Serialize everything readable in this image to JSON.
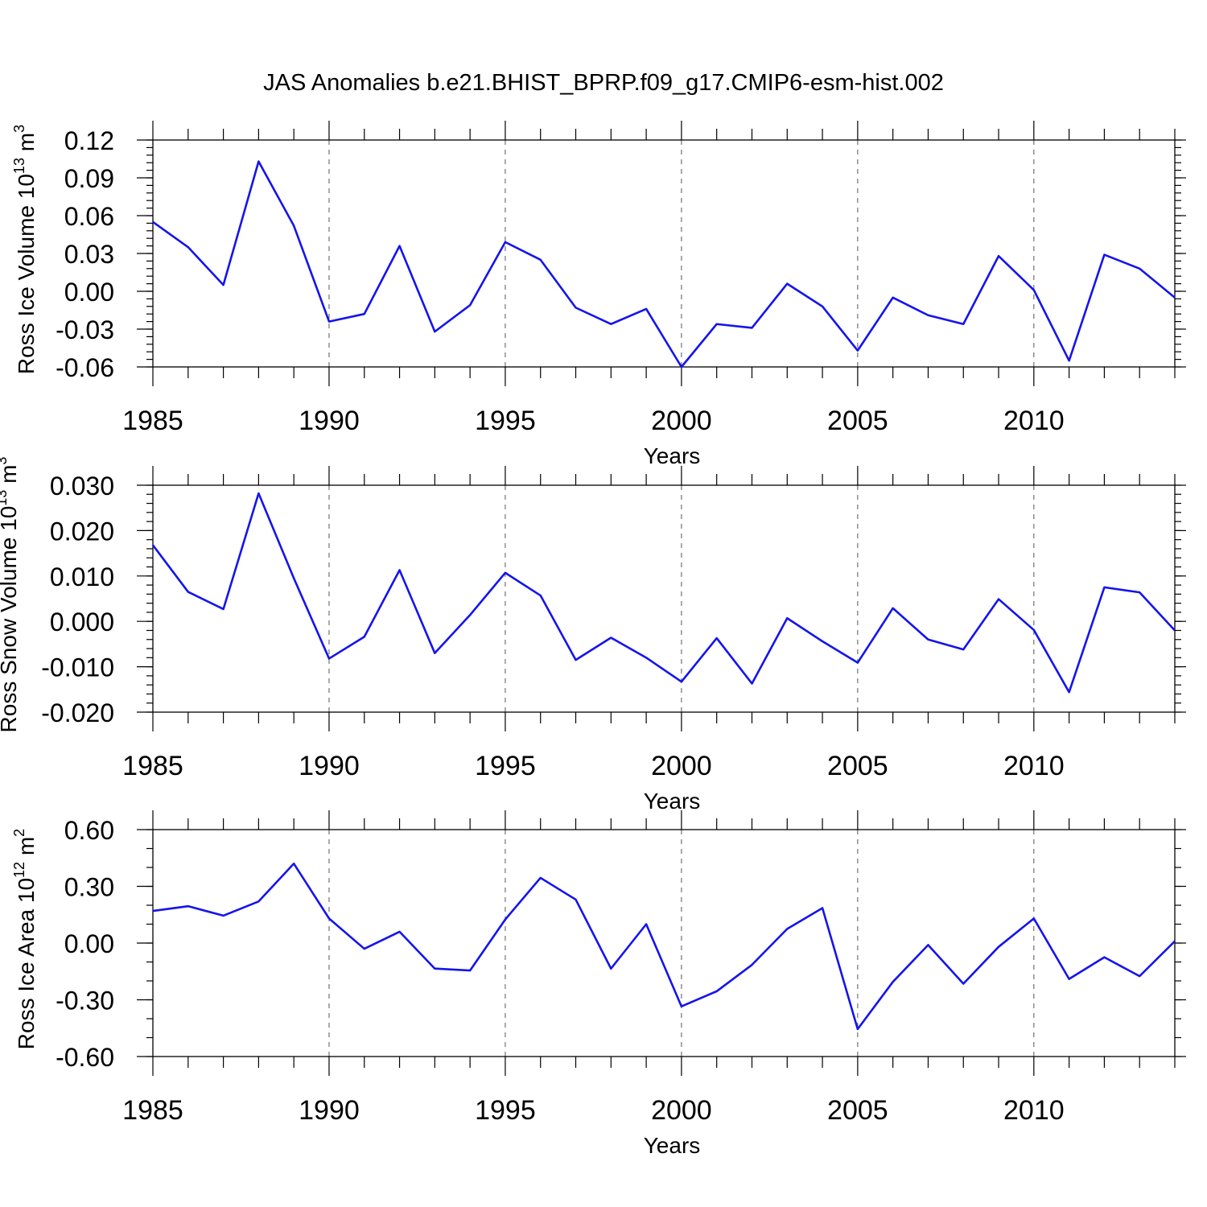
{
  "figure_title": "JAS Anomalies b.e21.BHIST_BPRP.f09_g17.CMIP6-esm-hist.002",
  "colors": {
    "series": "#1414ee",
    "axis": "#000000",
    "grid": "#555555"
  },
  "chart_data": [
    {
      "type": "line",
      "title": "",
      "xlabel": "Years",
      "ylabel": {
        "base": "Ross Ice Volume 10",
        "exp": "13",
        "unit": " m",
        "unit_exp": "3"
      },
      "xlim": [
        1985,
        2014
      ],
      "ylim": [
        -0.06,
        0.12
      ],
      "xticks": [
        1985,
        1990,
        1995,
        2000,
        2005,
        2010
      ],
      "xtick_labels": [
        "1985",
        "1990",
        "1995",
        "2000",
        "2005",
        "2010"
      ],
      "yticks": [
        -0.06,
        -0.03,
        0.0,
        0.03,
        0.06,
        0.09,
        0.12
      ],
      "ytick_labels": [
        "-0.06",
        "-0.03",
        "0.00",
        "0.03",
        "0.06",
        "0.09",
        "0.12"
      ],
      "yminor_step": 0.006,
      "grid": "vertical dashed at major x ticks",
      "x": [
        1985,
        1986,
        1987,
        1988,
        1989,
        1990,
        1991,
        1992,
        1993,
        1994,
        1995,
        1996,
        1997,
        1998,
        1999,
        2000,
        2001,
        2002,
        2003,
        2004,
        2005,
        2006,
        2007,
        2008,
        2009,
        2010,
        2011,
        2012,
        2013,
        2014
      ],
      "series": [
        {
          "name": "Ross Ice Volume",
          "values": [
            0.055,
            0.035,
            0.005,
            0.103,
            0.052,
            -0.024,
            -0.018,
            0.036,
            -0.032,
            -0.011,
            0.039,
            0.025,
            -0.013,
            -0.026,
            -0.014,
            -0.06,
            -0.026,
            -0.029,
            0.006,
            -0.012,
            -0.047,
            -0.005,
            -0.019,
            -0.026,
            0.028,
            0.001,
            -0.055,
            0.029,
            0.018,
            -0.005
          ]
        }
      ]
    },
    {
      "type": "line",
      "title": "",
      "xlabel": "Years",
      "ylabel": {
        "base": "Ross Snow Volume 10",
        "exp": "13",
        "unit": " m",
        "unit_exp": "3"
      },
      "xlim": [
        1985,
        2014
      ],
      "ylim": [
        -0.02,
        0.03
      ],
      "xticks": [
        1985,
        1990,
        1995,
        2000,
        2005,
        2010
      ],
      "xtick_labels": [
        "1985",
        "1990",
        "1995",
        "2000",
        "2005",
        "2010"
      ],
      "yticks": [
        -0.02,
        -0.01,
        0.0,
        0.01,
        0.02,
        0.03
      ],
      "ytick_labels": [
        "-0.020",
        "-0.010",
        "0.000",
        "0.010",
        "0.020",
        "0.030"
      ],
      "yminor_step": 0.002,
      "grid": "vertical dashed at major x ticks",
      "x": [
        1985,
        1986,
        1987,
        1988,
        1989,
        1990,
        1991,
        1992,
        1993,
        1994,
        1995,
        1996,
        1997,
        1998,
        1999,
        2000,
        2001,
        2002,
        2003,
        2004,
        2005,
        2006,
        2007,
        2008,
        2009,
        2010,
        2011,
        2012,
        2013,
        2014
      ],
      "series": [
        {
          "name": "Ross Snow Volume",
          "values": [
            0.0168,
            0.0065,
            0.0027,
            0.0282,
            0.0095,
            -0.0082,
            -0.0034,
            0.0113,
            -0.007,
            0.0014,
            0.0107,
            0.0057,
            -0.0085,
            -0.0036,
            -0.008,
            -0.0133,
            -0.0037,
            -0.0137,
            0.0007,
            -0.0044,
            -0.0091,
            0.0029,
            -0.004,
            -0.0062,
            0.0049,
            -0.0019,
            -0.0156,
            0.0075,
            0.0064,
            -0.002
          ]
        }
      ]
    },
    {
      "type": "line",
      "title": "",
      "xlabel": "Years",
      "ylabel": {
        "base": "Ross Ice Area 10",
        "exp": "12",
        "unit": " m",
        "unit_exp": "2"
      },
      "xlim": [
        1985,
        2014
      ],
      "ylim": [
        -0.6,
        0.6
      ],
      "xticks": [
        1985,
        1990,
        1995,
        2000,
        2005,
        2010
      ],
      "xtick_labels": [
        "1985",
        "1990",
        "1995",
        "2000",
        "2005",
        "2010"
      ],
      "yticks": [
        -0.6,
        -0.3,
        0.0,
        0.3,
        0.6
      ],
      "ytick_labels": [
        "-0.60",
        "-0.30",
        "0.00",
        "0.30",
        "0.60"
      ],
      "yminor_step": 0.1,
      "grid": "vertical dashed at major x ticks",
      "x": [
        1985,
        1986,
        1987,
        1988,
        1989,
        1990,
        1991,
        1992,
        1993,
        1994,
        1995,
        1996,
        1997,
        1998,
        1999,
        2000,
        2001,
        2002,
        2003,
        2004,
        2005,
        2006,
        2007,
        2008,
        2009,
        2010,
        2011,
        2012,
        2013,
        2014
      ],
      "series": [
        {
          "name": "Ross Ice Area",
          "values": [
            0.17,
            0.195,
            0.145,
            0.22,
            0.42,
            0.13,
            -0.03,
            0.06,
            -0.135,
            -0.145,
            0.125,
            0.345,
            0.23,
            -0.135,
            0.1,
            -0.335,
            -0.255,
            -0.115,
            0.075,
            0.185,
            -0.455,
            -0.205,
            -0.01,
            -0.215,
            -0.02,
            0.13,
            -0.19,
            -0.075,
            -0.175,
            0.01
          ]
        }
      ]
    }
  ]
}
